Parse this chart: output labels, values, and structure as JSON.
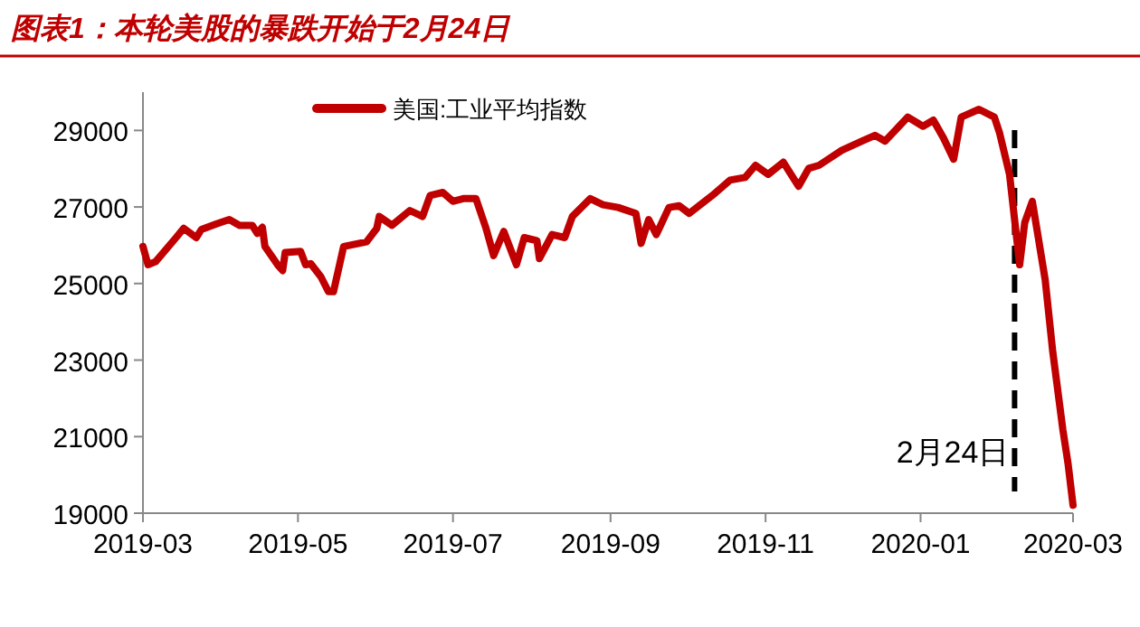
{
  "chart_data": {
    "type": "line",
    "title": "图表1：本轮美股的暴跌开始于2月24日",
    "legend": "top",
    "x": [
      "2019-03-18",
      "2019-03-20",
      "2019-03-23",
      "2019-03-31",
      "2019-04-03",
      "2019-04-08",
      "2019-04-10",
      "2019-04-16",
      "2019-04-21",
      "2019-04-25",
      "2019-04-30",
      "2019-05-02",
      "2019-05-04",
      "2019-05-05",
      "2019-05-10",
      "2019-05-12",
      "2019-05-13",
      "2019-05-19",
      "2019-05-21",
      "2019-05-23",
      "2019-05-27",
      "2019-05-30",
      "2019-06-01",
      "2019-06-05",
      "2019-06-11",
      "2019-06-14",
      "2019-06-18",
      "2019-06-19",
      "2019-06-24",
      "2019-07-01",
      "2019-07-06",
      "2019-07-09",
      "2019-07-14",
      "2019-07-18",
      "2019-07-22",
      "2019-07-27",
      "2019-07-31",
      "2019-08-03",
      "2019-08-07",
      "2019-08-12",
      "2019-08-15",
      "2019-08-20",
      "2019-08-21",
      "2019-08-26",
      "2019-08-31",
      "2019-09-03",
      "2019-09-10",
      "2019-09-15",
      "2019-09-21",
      "2019-09-28",
      "2019-09-30",
      "2019-10-03",
      "2019-10-06",
      "2019-10-11",
      "2019-10-15",
      "2019-10-19",
      "2019-10-28",
      "2019-11-04",
      "2019-11-10",
      "2019-11-14",
      "2019-11-19",
      "2019-11-25",
      "2019-12-01",
      "2019-12-05",
      "2019-12-09",
      "2019-12-18",
      "2019-12-26",
      "2019-12-31",
      "2020-01-04",
      "2020-01-13",
      "2020-01-19",
      "2020-01-23",
      "2020-01-27",
      "2020-01-31",
      "2020-02-03",
      "2020-02-10",
      "2020-02-16",
      "2020-02-18",
      "2020-02-22",
      "2020-02-26",
      "2020-02-28",
      "2020-03-02",
      "2020-03-07",
      "2020-03-10",
      "2020-03-14",
      "2020-03-16",
      "2020-03-18"
    ],
    "series": [
      {
        "name": "美国:工业平均指数",
        "color": "#c00000",
        "values": [
          25970,
          25490,
          25570,
          26200,
          26440,
          26200,
          26410,
          26560,
          26670,
          26520,
          26520,
          26310,
          26470,
          25970,
          25490,
          25340,
          25810,
          25840,
          25490,
          25520,
          25180,
          24790,
          24790,
          25970,
          26050,
          26090,
          26440,
          26750,
          26520,
          26910,
          26750,
          27300,
          27380,
          27150,
          27220,
          27220,
          26440,
          25730,
          26360,
          25490,
          26200,
          26120,
          25650,
          26280,
          26200,
          26750,
          27220,
          27060,
          26990,
          26830,
          26050,
          26670,
          26280,
          26990,
          27030,
          26830,
          27300,
          27700,
          27770,
          28090,
          27850,
          28170,
          27540,
          28010,
          28090,
          28480,
          28720,
          28870,
          28720,
          29350,
          29110,
          29270,
          28800,
          28250,
          29350,
          29550,
          29350,
          28950,
          27850,
          25490,
          26590,
          27150,
          25100,
          23210,
          21170,
          20310,
          19210
        ]
      }
    ],
    "xlim": [
      "2019-03-18",
      "2020-03-18"
    ],
    "xticks": [
      {
        "value": "2019-03-18",
        "label": "2019-03"
      },
      {
        "value": "2019-05-18",
        "label": "2019-05"
      },
      {
        "value": "2019-07-18",
        "label": "2019-07"
      },
      {
        "value": "2019-09-18",
        "label": "2019-09"
      },
      {
        "value": "2019-11-18",
        "label": "2019-11"
      },
      {
        "value": "2020-01-18",
        "label": "2020-01"
      },
      {
        "value": "2020-03-18",
        "label": "2020-03"
      }
    ],
    "ylim": [
      19000,
      30000
    ],
    "yticks": [
      19000,
      21000,
      23000,
      25000,
      27000,
      29000
    ],
    "ref_lines": [
      {
        "axis": "x",
        "value": "2020-02-24",
        "label": "2月24日",
        "color": "#000000",
        "line_style": "dashed"
      }
    ],
    "grid": false
  }
}
